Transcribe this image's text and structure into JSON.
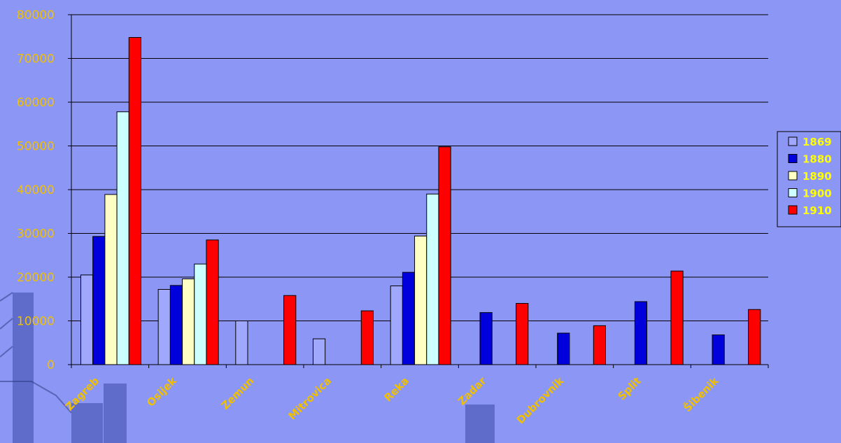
{
  "chart_data": {
    "type": "bar",
    "title": "",
    "xlabel": "",
    "ylabel": "",
    "ylim": [
      0,
      80000
    ],
    "yticks": [
      0,
      10000,
      20000,
      30000,
      40000,
      50000,
      60000,
      70000,
      80000
    ],
    "grid": true,
    "legend_position": "right",
    "categories": [
      "Zagreb",
      "Osijek",
      "Zemun",
      "Mitrovica",
      "Reka",
      "Zadar",
      "Dubrovnik",
      "Split",
      "Šibenik"
    ],
    "series": [
      {
        "name": "1869",
        "color": "#9fa8fc",
        "values": [
          20500,
          17200,
          10000,
          5900,
          18000,
          null,
          null,
          null,
          null
        ]
      },
      {
        "name": "1880",
        "color": "#0000dd",
        "values": [
          29300,
          18100,
          null,
          null,
          21100,
          11900,
          7200,
          14400,
          6800
        ]
      },
      {
        "name": "1890",
        "color": "#ffffc4",
        "values": [
          38900,
          19600,
          null,
          null,
          29400,
          null,
          null,
          null,
          null
        ]
      },
      {
        "name": "1900",
        "color": "#ccffff",
        "values": [
          57800,
          23000,
          null,
          null,
          39000,
          null,
          null,
          null,
          null
        ]
      },
      {
        "name": "1910",
        "color": "#ff0000",
        "values": [
          74800,
          28500,
          15800,
          12300,
          49800,
          14000,
          8900,
          21400,
          12600
        ]
      }
    ]
  }
}
